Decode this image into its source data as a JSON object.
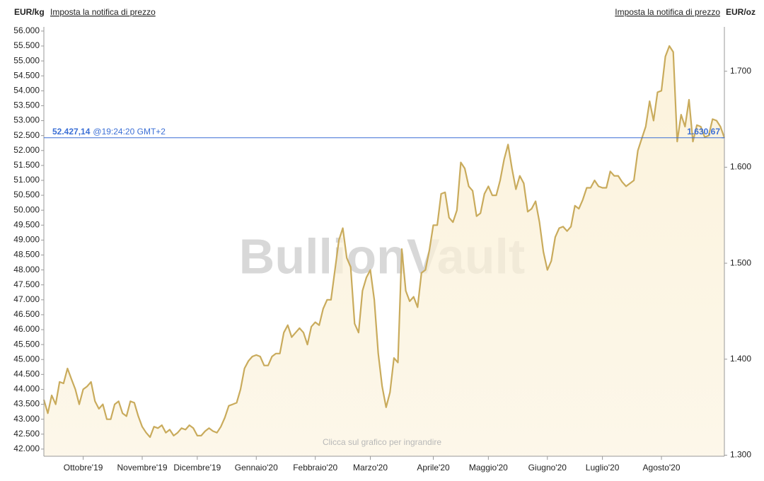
{
  "header": {
    "left_unit": "EUR/kg",
    "left_link": "Imposta la notifica di prezzo",
    "right_link": "Imposta la notifica di prezzo",
    "right_unit": "EUR/oz"
  },
  "chart_data": {
    "type": "area",
    "watermark": "BullionVault",
    "hint": "Clicca sul grafico per ingrandire",
    "color": "#c9ab5c",
    "fill": "#fbf1d8",
    "categories": [
      null,
      null,
      null,
      null,
      null,
      null,
      null,
      null,
      null,
      null,
      "Ottobre'19",
      null,
      null,
      null,
      null,
      null,
      null,
      null,
      null,
      null,
      null,
      null,
      null,
      null,
      null,
      "Novembre'19",
      null,
      null,
      null,
      null,
      null,
      null,
      null,
      null,
      null,
      null,
      null,
      null,
      null,
      "Dicembre'19",
      null,
      null,
      null,
      null,
      null,
      null,
      null,
      null,
      null,
      null,
      null,
      null,
      null,
      null,
      "Gennaio'20",
      null,
      null,
      null,
      null,
      null,
      null,
      null,
      null,
      null,
      null,
      null,
      null,
      null,
      null,
      "Febbraio'20",
      null,
      null,
      null,
      null,
      null,
      null,
      null,
      null,
      null,
      null,
      null,
      null,
      null,
      "Marzo'20",
      null,
      null,
      null,
      null,
      null,
      null,
      null,
      null,
      null,
      null,
      null,
      null,
      null,
      null,
      null,
      "Aprile'20",
      null,
      null,
      null,
      null,
      null,
      null,
      null,
      null,
      null,
      null,
      null,
      null,
      null,
      "Maggio'20",
      null,
      null,
      null,
      null,
      null,
      null,
      null,
      null,
      null,
      null,
      null,
      null,
      null,
      null,
      "Giugno'20",
      null,
      null,
      null,
      null,
      null,
      null,
      null,
      null,
      null,
      null,
      null,
      null,
      null,
      "Luglio'20",
      null,
      null,
      null,
      null,
      null,
      null,
      null,
      null,
      null,
      null,
      null,
      null,
      null,
      null,
      "Agosto'20",
      null,
      null,
      null,
      null,
      null,
      null,
      null,
      null,
      null,
      null,
      null,
      null,
      null,
      null,
      null,
      null
    ],
    "values": [
      43650,
      43200,
      43800,
      43500,
      44250,
      44200,
      44700,
      44350,
      44000,
      43500,
      44000,
      44100,
      44250,
      43600,
      43350,
      43500,
      43000,
      43000,
      43500,
      43600,
      43200,
      43100,
      43600,
      43550,
      43100,
      42750,
      42550,
      42400,
      42750,
      42700,
      42800,
      42550,
      42650,
      42450,
      42550,
      42700,
      42650,
      42800,
      42700,
      42450,
      42450,
      42600,
      42700,
      42600,
      42550,
      42750,
      43050,
      43450,
      43500,
      43550,
      44000,
      44700,
      44950,
      45100,
      45150,
      45100,
      44800,
      44800,
      45100,
      45200,
      45200,
      45900,
      46150,
      45750,
      45900,
      46050,
      45900,
      45500,
      46100,
      46250,
      46150,
      46700,
      47000,
      47000,
      48000,
      49000,
      49400,
      48400,
      48100,
      46200,
      45900,
      47300,
      47750,
      48000,
      47000,
      45200,
      44100,
      43400,
      43900,
      45050,
      44900,
      48700,
      47300,
      46950,
      47100,
      46750,
      47900,
      48000,
      48650,
      49500,
      49500,
      50550,
      50600,
      49750,
      49600,
      50000,
      51600,
      51400,
      50800,
      50650,
      49800,
      49900,
      50550,
      50800,
      50500,
      50500,
      51000,
      51700,
      52200,
      51400,
      50700,
      51150,
      50900,
      49950,
      50050,
      50300,
      49600,
      48600,
      48000,
      48300,
      49100,
      49400,
      49450,
      49300,
      49450,
      50150,
      50050,
      50350,
      50750,
      50750,
      51000,
      50800,
      50750,
      50750,
      51300,
      51150,
      51150,
      50950,
      50800,
      50900,
      51000,
      52000,
      52400,
      52800,
      53650,
      53000,
      53950,
      54000,
      55150,
      55500,
      55300,
      52300,
      53200,
      52800,
      53700,
      52300,
      52850,
      52800,
      52450,
      52500,
      53050,
      53000,
      52800,
      52427.14
    ],
    "ylim": [
      41760,
      56140
    ],
    "yticks": [
      {
        "value": 42000,
        "label": "42.000"
      },
      {
        "value": 42500,
        "label": "42.500"
      },
      {
        "value": 43000,
        "label": "43.000"
      },
      {
        "value": 43500,
        "label": "43.500"
      },
      {
        "value": 44000,
        "label": "44.000"
      },
      {
        "value": 44500,
        "label": "44.500"
      },
      {
        "value": 45000,
        "label": "45.000"
      },
      {
        "value": 45500,
        "label": "45.500"
      },
      {
        "value": 46000,
        "label": "46.000"
      },
      {
        "value": 46500,
        "label": "46.500"
      },
      {
        "value": 47000,
        "label": "47.000"
      },
      {
        "value": 47500,
        "label": "47.500"
      },
      {
        "value": 48000,
        "label": "48.000"
      },
      {
        "value": 48500,
        "label": "48.500"
      },
      {
        "value": 49000,
        "label": "49.000"
      },
      {
        "value": 49500,
        "label": "49.500"
      },
      {
        "value": 50000,
        "label": "50.000"
      },
      {
        "value": 50500,
        "label": "50.500"
      },
      {
        "value": 51000,
        "label": "51.000"
      },
      {
        "value": 51500,
        "label": "51.500"
      },
      {
        "value": 52000,
        "label": "52.000"
      },
      {
        "value": 52500,
        "label": "52.500"
      },
      {
        "value": 53000,
        "label": "53.000"
      },
      {
        "value": 53500,
        "label": "53.500"
      },
      {
        "value": 54000,
        "label": "54.000"
      },
      {
        "value": 54500,
        "label": "54.500"
      },
      {
        "value": 55000,
        "label": "55.000"
      },
      {
        "value": 55500,
        "label": "55.500"
      },
      {
        "value": 56000,
        "label": "56.000"
      }
    ],
    "y2lim": [
      1298.9,
      1746.2
    ],
    "y2ticks": [
      {
        "value": 1300,
        "label": "1.300"
      },
      {
        "value": 1400,
        "label": "1.400"
      },
      {
        "value": 1500,
        "label": "1.500"
      },
      {
        "value": 1600,
        "label": "1.600"
      },
      {
        "value": 1700,
        "label": "1.700"
      }
    ],
    "grid": false,
    "price_line": {
      "value": 52427.14,
      "label": "52.427,14",
      "time": "@19:24:20 GMT+2",
      "y2_value": 1630.67,
      "y2_label": "1.630,67",
      "color": "#3b6fd6"
    }
  }
}
